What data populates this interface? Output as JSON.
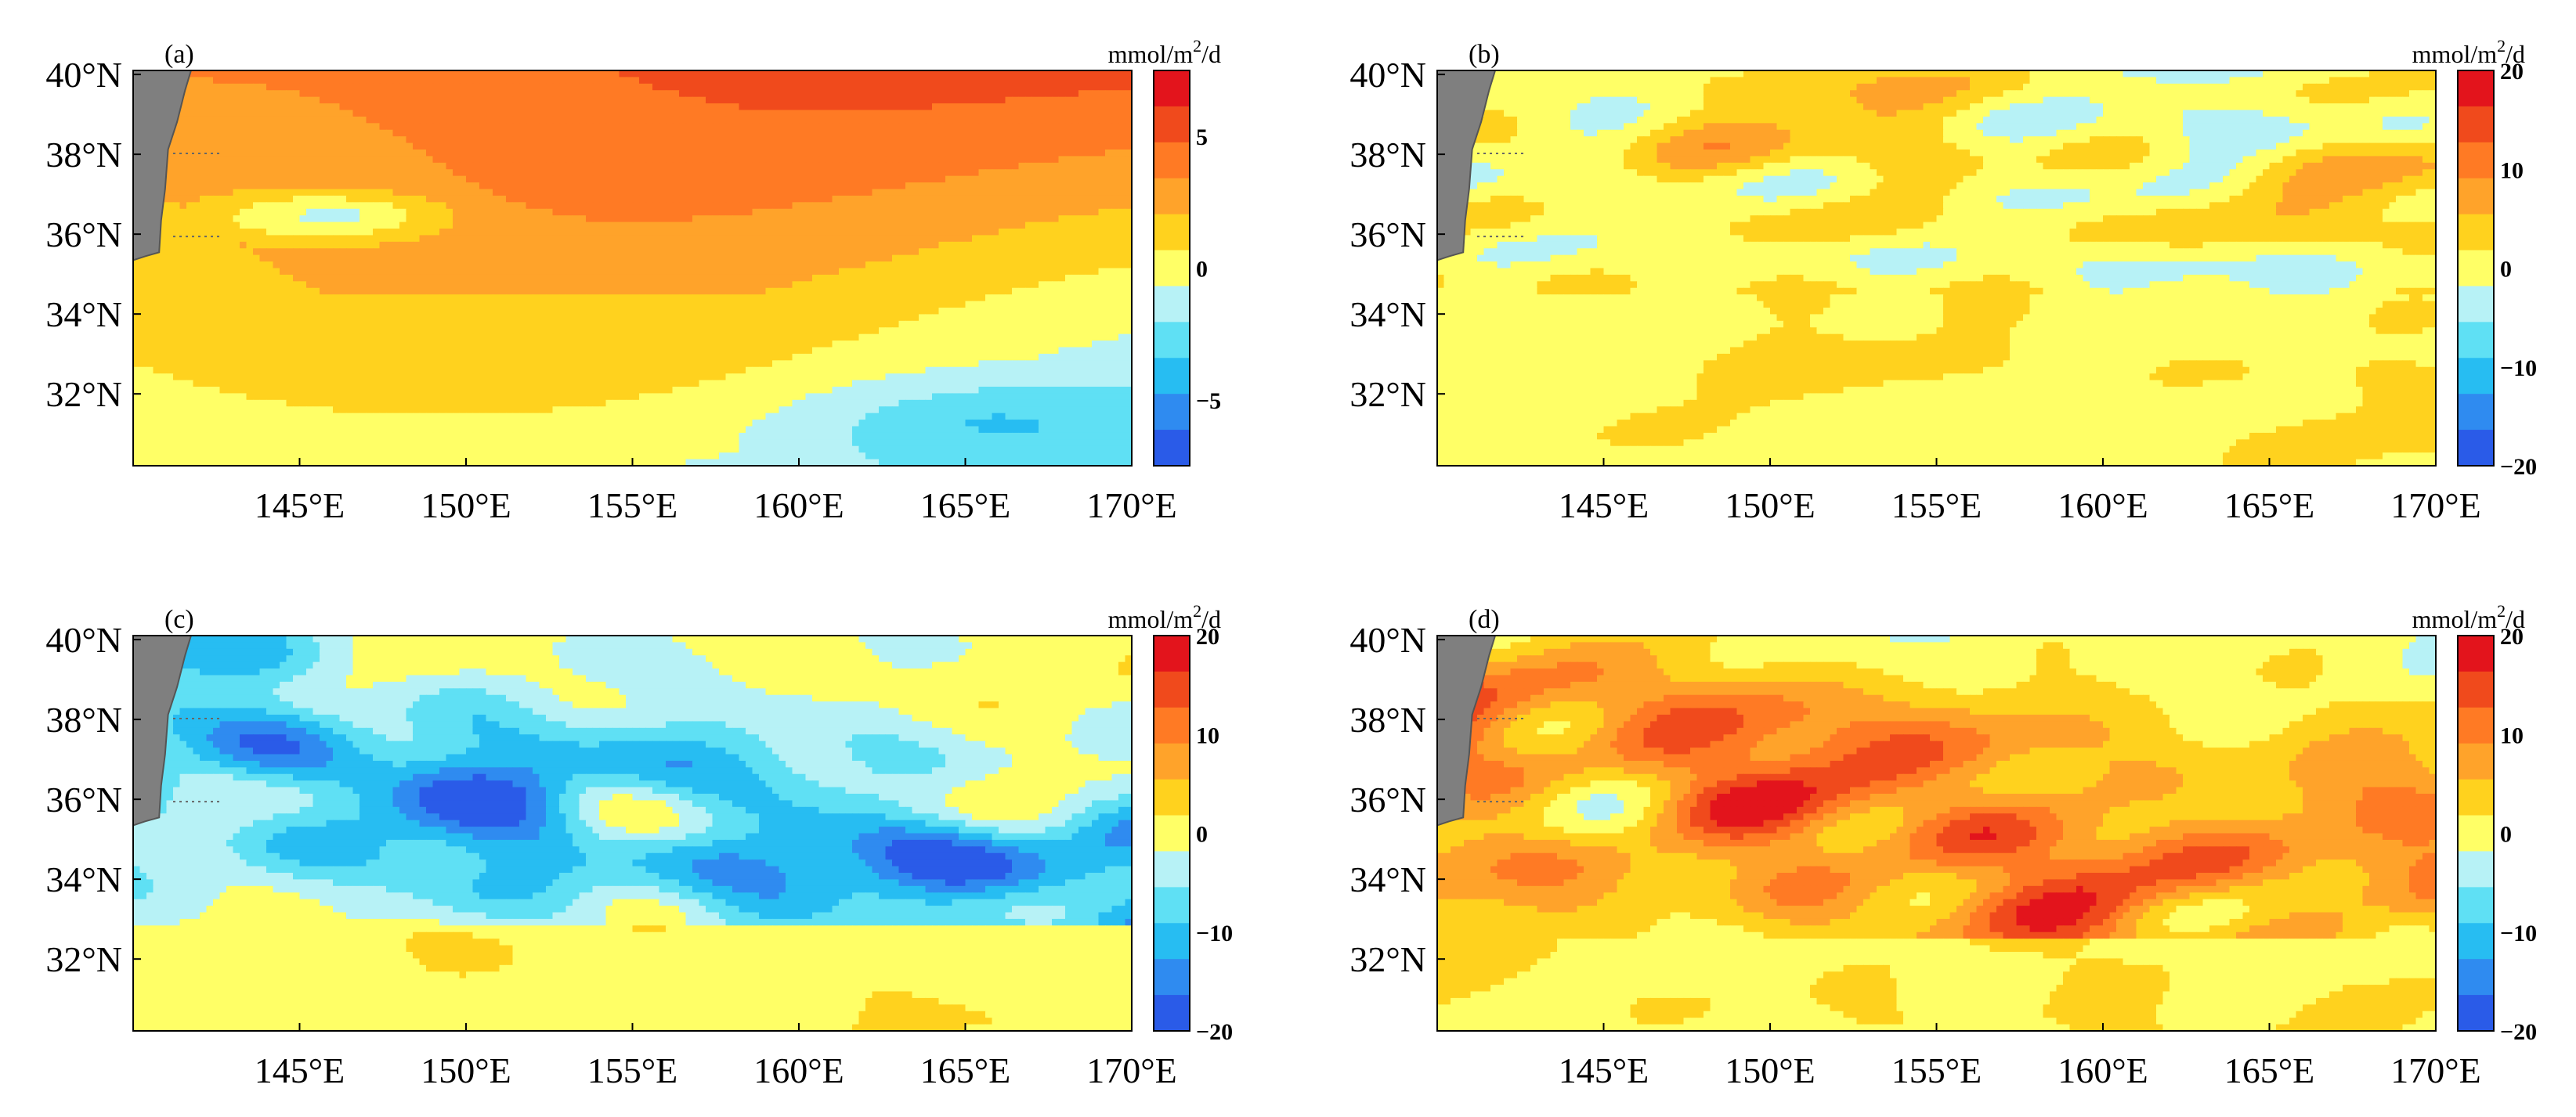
{
  "chart_data": [
    {
      "panel": "(a)",
      "type": "heatmap",
      "units": [
        "mmol/m",
        "2",
        "/d"
      ],
      "x_ticks": [
        "145°E",
        "150°E",
        "155°E",
        "160°E",
        "165°E",
        "170°E"
      ],
      "y_ticks": [
        "40°N",
        "38°N",
        "36°N",
        "34°N",
        "32°N"
      ],
      "x_range": [
        140,
        170
      ],
      "y_range": [
        30.2,
        40.1
      ],
      "colorbar": {
        "range": [
          -7.5,
          7.5
        ],
        "ticks": [
          5,
          0,
          -5
        ],
        "tick_labels": [
          "5",
          "0",
          "−5"
        ]
      },
      "pattern": "smooth"
    },
    {
      "panel": "(b)",
      "type": "heatmap",
      "units": [
        "mmol/m",
        "2",
        "/d"
      ],
      "x_ticks": [
        "145°E",
        "150°E",
        "155°E",
        "160°E",
        "165°E",
        "170°E"
      ],
      "y_ticks": [
        "40°N",
        "38°N",
        "36°N",
        "34°N",
        "32°N"
      ],
      "x_range": [
        140,
        170
      ],
      "y_range": [
        30.2,
        40.1
      ],
      "colorbar": {
        "range": [
          -20,
          20
        ],
        "ticks": [
          20,
          10,
          0,
          -10,
          -20
        ],
        "tick_labels": [
          "20",
          "10",
          "0",
          "−10",
          "−20"
        ]
      },
      "pattern": "mixed"
    },
    {
      "panel": "(c)",
      "type": "heatmap",
      "units": [
        "mmol/m",
        "2",
        "/d"
      ],
      "x_ticks": [
        "145°E",
        "150°E",
        "155°E",
        "160°E",
        "165°E",
        "170°E"
      ],
      "y_ticks": [
        "40°N",
        "38°N",
        "36°N",
        "34°N",
        "32°N"
      ],
      "x_range": [
        140,
        170
      ],
      "y_range": [
        30.2,
        40.1
      ],
      "colorbar": {
        "range": [
          -20,
          20
        ],
        "ticks": [
          20,
          10,
          0,
          -10,
          -20
        ],
        "tick_labels": [
          "20",
          "10",
          "0",
          "−10",
          "−20"
        ]
      },
      "pattern": "negative"
    },
    {
      "panel": "(d)",
      "type": "heatmap",
      "units": [
        "mmol/m",
        "2",
        "/d"
      ],
      "x_ticks": [
        "145°E",
        "150°E",
        "155°E",
        "160°E",
        "165°E",
        "170°E"
      ],
      "y_ticks": [
        "40°N",
        "38°N",
        "36°N",
        "34°N",
        "32°N"
      ],
      "x_range": [
        140,
        170
      ],
      "y_range": [
        30.2,
        40.1
      ],
      "colorbar": {
        "range": [
          -20,
          20
        ],
        "ticks": [
          20,
          10,
          0,
          -10,
          -20
        ],
        "tick_labels": [
          "20",
          "10",
          "0",
          "−10",
          "−20"
        ]
      },
      "pattern": "positive"
    }
  ],
  "colors": {
    "scale": [
      "#2A5BE8",
      "#2F8BF0",
      "#27BDF2",
      "#5FE0F4",
      "#B7F2F6",
      "#FFFF66",
      "#FFD21E",
      "#FFA32A",
      "#FF7A24",
      "#F04A1C",
      "#E3141C"
    ],
    "land": "#7F7F7F"
  }
}
